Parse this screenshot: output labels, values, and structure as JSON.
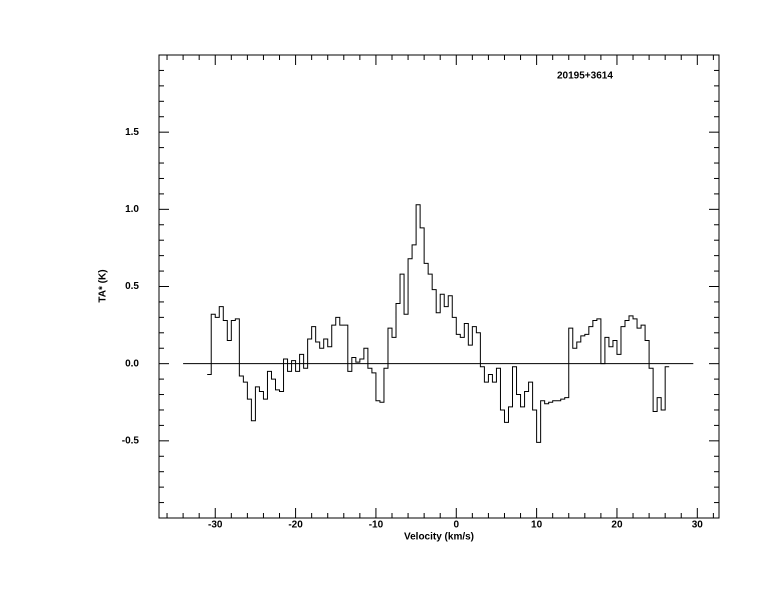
{
  "chart_data": {
    "type": "step",
    "annotation": "20195+3614",
    "xlabel": "Velocity (km/s)",
    "ylabel": "TA* (K)",
    "xlim": [
      -37,
      32.7
    ],
    "ylim": [
      -1,
      2
    ],
    "xticks": [
      -30,
      -20,
      -10,
      0,
      10,
      20,
      30
    ],
    "yticks": [
      -0.5,
      {
        "value": 0,
        "label": "0.0"
      },
      0.5,
      {
        "value": 1,
        "label": "1.0"
      },
      1.5
    ],
    "xticks_minor": [
      -36,
      -34,
      -32,
      -28,
      -26,
      -24,
      -22,
      -18,
      -16,
      -14,
      -12,
      -8,
      -6,
      -4,
      -2,
      2,
      4,
      6,
      8,
      12,
      14,
      16,
      18,
      22,
      24,
      26,
      28,
      32
    ],
    "yticks_minor": [
      -0.9,
      -0.8,
      -0.7,
      -0.6,
      -0.4,
      -0.3,
      -0.2,
      -0.1,
      0.1,
      0.2,
      0.3,
      0.4,
      0.6,
      0.7,
      0.8,
      0.9,
      1.1,
      1.2,
      1.3,
      1.4,
      1.6,
      1.7,
      1.8,
      1.9
    ],
    "baseline": {
      "y": 0,
      "xmin": -34,
      "xmax": 29.5
    },
    "color": "#000000",
    "x": [
      -30.75,
      -30.25,
      -29.75,
      -29.25,
      -28.75,
      -28.25,
      -27.75,
      -27.25,
      -26.75,
      -26.25,
      -25.75,
      -25.25,
      -24.75,
      -24.25,
      -23.75,
      -23.25,
      -22.75,
      -22.25,
      -21.75,
      -21.25,
      -20.75,
      -20.25,
      -19.75,
      -19.25,
      -18.75,
      -18.25,
      -17.75,
      -17.25,
      -16.75,
      -16.25,
      -15.75,
      -15.25,
      -14.75,
      -14.25,
      -13.75,
      -13.25,
      -12.75,
      -12.25,
      -11.75,
      -11.25,
      -10.75,
      -10.25,
      -9.75,
      -9.25,
      -8.75,
      -8.25,
      -7.75,
      -7.25,
      -6.75,
      -6.25,
      -5.75,
      -5.25,
      -4.75,
      -4.25,
      -3.75,
      -3.25,
      -2.75,
      -2.25,
      -1.75,
      -1.25,
      -0.75,
      -0.25,
      0.25,
      0.75,
      1.25,
      1.75,
      2.25,
      2.75,
      3.25,
      3.75,
      4.25,
      4.75,
      5.25,
      5.75,
      6.25,
      6.75,
      7.25,
      7.75,
      8.25,
      8.75,
      9.25,
      9.75,
      10.25,
      10.75,
      11.25,
      11.75,
      12.25,
      12.75,
      13.25,
      13.75,
      14.25,
      14.75,
      15.25,
      15.75,
      16.25,
      16.75,
      17.25,
      17.75,
      18.25,
      18.75,
      19.25,
      19.75,
      20.25,
      20.75,
      21.25,
      21.75,
      22.25,
      22.75,
      23.25,
      23.75,
      24.25,
      24.75,
      25.25,
      25.75,
      26.25
    ],
    "values": [
      -0.07,
      0.32,
      0.3,
      0.37,
      0.28,
      0.15,
      0.28,
      0.29,
      -0.08,
      -0.12,
      -0.23,
      -0.37,
      -0.15,
      -0.18,
      -0.23,
      -0.05,
      -0.1,
      -0.17,
      -0.18,
      0.03,
      -0.05,
      0.02,
      -0.05,
      0.06,
      -0.03,
      0.16,
      0.24,
      0.14,
      0.1,
      0.16,
      0.11,
      0.25,
      0.3,
      0.25,
      0.25,
      -0.05,
      0.04,
      0.01,
      0.03,
      0.1,
      -0.03,
      -0.06,
      -0.24,
      -0.25,
      -0.03,
      0.23,
      0.17,
      0.39,
      0.58,
      0.32,
      0.68,
      0.77,
      1.03,
      0.88,
      0.65,
      0.58,
      0.48,
      0.33,
      0.45,
      0.37,
      0.44,
      0.3,
      0.19,
      0.17,
      0.26,
      0.12,
      0.24,
      0.2,
      -0.02,
      -0.12,
      -0.07,
      -0.12,
      -0.03,
      -0.3,
      -0.38,
      -0.28,
      -0.02,
      -0.2,
      -0.28,
      -0.18,
      -0.12,
      -0.3,
      -0.51,
      -0.24,
      -0.26,
      -0.25,
      -0.24,
      -0.24,
      -0.23,
      -0.22,
      0.23,
      0.1,
      0.14,
      0.18,
      0.19,
      0.24,
      0.28,
      0.29,
      0.0,
      0.17,
      0.11,
      0.15,
      0.06,
      0.24,
      0.28,
      0.31,
      0.29,
      0.23,
      0.25,
      0.15,
      -0.03,
      -0.31,
      -0.22,
      -0.3,
      -0.02
    ]
  }
}
